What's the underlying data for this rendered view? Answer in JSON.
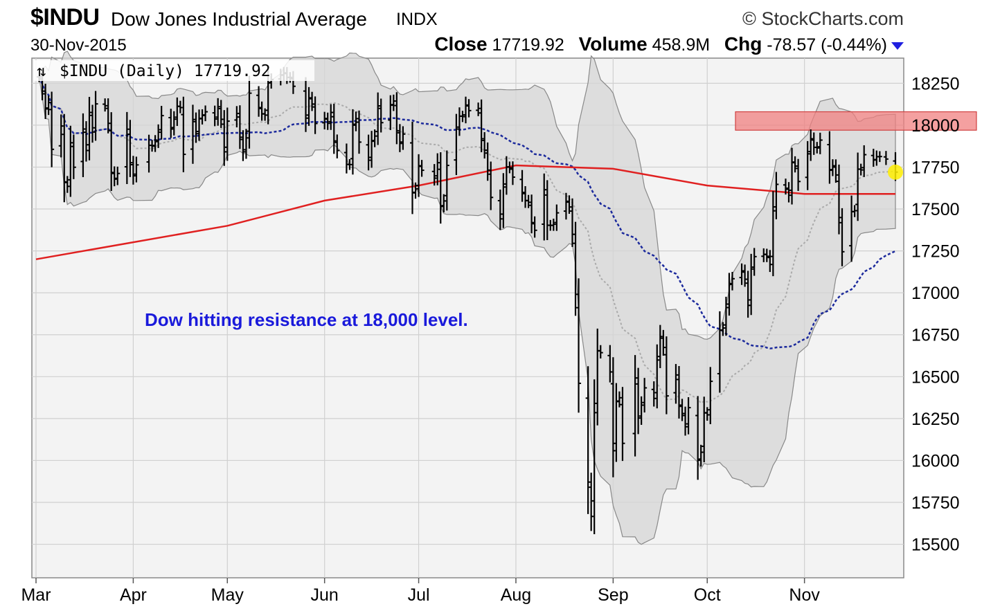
{
  "header": {
    "symbol": "$INDU",
    "name": "Dow Jones Industrial Average",
    "exchange": "INDX",
    "brand": "StockCharts.com",
    "date": "30-Nov-2015",
    "close_label": "Close",
    "close_value": "17719.92",
    "volume_label": "Volume",
    "volume_value": "458.9M",
    "chg_label": "Chg",
    "chg_value": "-78.57 (-0.44%)"
  },
  "legend_text": "$INDU (Daily) 17719.92",
  "annotation": "Dow hitting resistance at 18,000 level.",
  "colors": {
    "ma_long": "#e02020",
    "ma_mid": "#1c2a9c",
    "ma_short": "#aaaaaa",
    "band_fill": "#dcdcdc",
    "resistance": "#f08080",
    "annotation": "#1a1adb",
    "last_marker": "#ffee00"
  },
  "chart_data": {
    "type": "ohlc",
    "title": "$INDU (Daily) 17719.92",
    "x_range": [
      "2015-03-01",
      "2015-11-30"
    ],
    "ylim": [
      15300,
      18400
    ],
    "y_ticks": [
      15500,
      15750,
      16000,
      16250,
      16500,
      16750,
      17000,
      17250,
      17500,
      17750,
      18000,
      18250
    ],
    "y_tick_labels": [
      "15500",
      "15750",
      "16000",
      "16250",
      "16500",
      "16750",
      "17000",
      "17250",
      "17500",
      "17750",
      "18000",
      "18250"
    ],
    "x_ticks": [
      "2015-03-01",
      "2015-04-01",
      "2015-05-01",
      "2015-06-01",
      "2015-07-01",
      "2015-08-01",
      "2015-09-01",
      "2015-10-01",
      "2015-11-01"
    ],
    "x_tick_labels": [
      "Mar",
      "Apr",
      "May",
      "Jun",
      "Jul",
      "Aug",
      "Sep",
      "Oct",
      "Nov"
    ],
    "grid": true,
    "resistance_zone": [
      17970,
      18080
    ],
    "resistance_start": "2015-10-10",
    "close": [
      [
        "2015-03-02",
        18288
      ],
      [
        "2015-03-03",
        18203
      ],
      [
        "2015-03-04",
        18097
      ],
      [
        "2015-03-05",
        18135
      ],
      [
        "2015-03-06",
        17856
      ],
      [
        "2015-03-09",
        17995
      ],
      [
        "2015-03-10",
        17662
      ],
      [
        "2015-03-11",
        17635
      ],
      [
        "2015-03-12",
        17895
      ],
      [
        "2015-03-13",
        17749
      ],
      [
        "2015-03-16",
        17977
      ],
      [
        "2015-03-17",
        17849
      ],
      [
        "2015-03-18",
        18076
      ],
      [
        "2015-03-19",
        17959
      ],
      [
        "2015-03-20",
        18127
      ],
      [
        "2015-03-23",
        18116
      ],
      [
        "2015-03-24",
        18011
      ],
      [
        "2015-03-25",
        17718
      ],
      [
        "2015-03-26",
        17678
      ],
      [
        "2015-03-27",
        17712
      ],
      [
        "2015-03-30",
        17976
      ],
      [
        "2015-03-31",
        17776
      ],
      [
        "2015-04-01",
        17698
      ],
      [
        "2015-04-02",
        17763
      ],
      [
        "2015-04-06",
        17880
      ],
      [
        "2015-04-07",
        17875
      ],
      [
        "2015-04-08",
        17902
      ],
      [
        "2015-04-09",
        17958
      ],
      [
        "2015-04-10",
        18057
      ],
      [
        "2015-04-13",
        17977
      ],
      [
        "2015-04-14",
        18036
      ],
      [
        "2015-04-15",
        18113
      ],
      [
        "2015-04-16",
        18105
      ],
      [
        "2015-04-17",
        17826
      ],
      [
        "2015-04-20",
        18034
      ],
      [
        "2015-04-21",
        17949
      ],
      [
        "2015-04-22",
        18038
      ],
      [
        "2015-04-23",
        18058
      ],
      [
        "2015-04-24",
        18080
      ],
      [
        "2015-04-27",
        18037
      ],
      [
        "2015-04-28",
        18110
      ],
      [
        "2015-04-29",
        18035
      ],
      [
        "2015-04-30",
        17841
      ],
      [
        "2015-05-01",
        18024
      ],
      [
        "2015-05-04",
        18070
      ],
      [
        "2015-05-05",
        17928
      ],
      [
        "2015-05-06",
        17841
      ],
      [
        "2015-05-07",
        17924
      ],
      [
        "2015-05-08",
        18191
      ],
      [
        "2015-05-11",
        18105
      ],
      [
        "2015-05-12",
        18068
      ],
      [
        "2015-05-13",
        18060
      ],
      [
        "2015-05-14",
        18252
      ],
      [
        "2015-05-15",
        18272
      ],
      [
        "2015-05-18",
        18298
      ],
      [
        "2015-05-19",
        18312
      ],
      [
        "2015-05-20",
        18285
      ],
      [
        "2015-05-21",
        18285
      ],
      [
        "2015-05-22",
        18232
      ],
      [
        "2015-05-26",
        18042
      ],
      [
        "2015-05-27",
        18163
      ],
      [
        "2015-05-28",
        18126
      ],
      [
        "2015-05-29",
        18010
      ],
      [
        "2015-06-01",
        18040
      ],
      [
        "2015-06-02",
        18011
      ],
      [
        "2015-06-03",
        18076
      ],
      [
        "2015-06-04",
        17906
      ],
      [
        "2015-06-05",
        17849
      ],
      [
        "2015-06-08",
        17766
      ],
      [
        "2015-06-09",
        17765
      ],
      [
        "2015-06-10",
        18000
      ],
      [
        "2015-06-11",
        18039
      ],
      [
        "2015-06-12",
        17899
      ],
      [
        "2015-06-15",
        17791
      ],
      [
        "2015-06-16",
        17904
      ],
      [
        "2015-06-17",
        17935
      ],
      [
        "2015-06-18",
        18115
      ],
      [
        "2015-06-19",
        18015
      ],
      [
        "2015-06-22",
        18119
      ],
      [
        "2015-06-23",
        18144
      ],
      [
        "2015-06-24",
        17966
      ],
      [
        "2015-06-25",
        17891
      ],
      [
        "2015-06-26",
        17947
      ],
      [
        "2015-06-29",
        17596
      ],
      [
        "2015-06-30",
        17620
      ],
      [
        "2015-07-01",
        17758
      ],
      [
        "2015-07-02",
        17731
      ],
      [
        "2015-07-06",
        17684
      ],
      [
        "2015-07-07",
        17776
      ],
      [
        "2015-07-08",
        17515
      ],
      [
        "2015-07-09",
        17548
      ],
      [
        "2015-07-10",
        17760
      ],
      [
        "2015-07-13",
        17977
      ],
      [
        "2015-07-14",
        18054
      ],
      [
        "2015-07-15",
        18051
      ],
      [
        "2015-07-16",
        18120
      ],
      [
        "2015-07-17",
        18087
      ],
      [
        "2015-07-20",
        18100
      ],
      [
        "2015-07-21",
        17919
      ],
      [
        "2015-07-22",
        17851
      ],
      [
        "2015-07-23",
        17732
      ],
      [
        "2015-07-24",
        17569
      ],
      [
        "2015-07-27",
        17441
      ],
      [
        "2015-07-28",
        17631
      ],
      [
        "2015-07-29",
        17751
      ],
      [
        "2015-07-30",
        17746
      ],
      [
        "2015-07-31",
        17690
      ],
      [
        "2015-08-03",
        17599
      ],
      [
        "2015-08-04",
        17551
      ],
      [
        "2015-08-05",
        17540
      ],
      [
        "2015-08-06",
        17419
      ],
      [
        "2015-08-07",
        17373
      ],
      [
        "2015-08-10",
        17615
      ],
      [
        "2015-08-11",
        17403
      ],
      [
        "2015-08-12",
        17402
      ],
      [
        "2015-08-13",
        17409
      ],
      [
        "2015-08-14",
        17477
      ],
      [
        "2015-08-17",
        17546
      ],
      [
        "2015-08-18",
        17512
      ],
      [
        "2015-08-19",
        17349
      ],
      [
        "2015-08-20",
        16991
      ],
      [
        "2015-08-21",
        16460
      ],
      [
        "2015-08-24",
        15871
      ],
      [
        "2015-08-25",
        15666
      ],
      [
        "2015-08-26",
        16285
      ],
      [
        "2015-08-27",
        16655
      ],
      [
        "2015-08-28",
        16643
      ],
      [
        "2015-08-31",
        16528
      ],
      [
        "2015-09-01",
        16058
      ],
      [
        "2015-09-02",
        16351
      ],
      [
        "2015-09-03",
        16374
      ],
      [
        "2015-09-04",
        16102
      ],
      [
        "2015-09-08",
        16492
      ],
      [
        "2015-09-09",
        16253
      ],
      [
        "2015-09-10",
        16330
      ],
      [
        "2015-09-11",
        16433
      ],
      [
        "2015-09-14",
        16370
      ],
      [
        "2015-09-15",
        16599
      ],
      [
        "2015-09-16",
        16739
      ],
      [
        "2015-09-17",
        16674
      ],
      [
        "2015-09-18",
        16385
      ],
      [
        "2015-09-21",
        16510
      ],
      [
        "2015-09-22",
        16330
      ],
      [
        "2015-09-23",
        16280
      ],
      [
        "2015-09-24",
        16201
      ],
      [
        "2015-09-25",
        16315
      ],
      [
        "2015-09-28",
        16001
      ],
      [
        "2015-09-29",
        16049
      ],
      [
        "2015-09-30",
        16285
      ],
      [
        "2015-10-01",
        16272
      ],
      [
        "2015-10-02",
        16472
      ],
      [
        "2015-10-05",
        16776
      ],
      [
        "2015-10-06",
        16790
      ],
      [
        "2015-10-07",
        16912
      ],
      [
        "2015-10-08",
        17050
      ],
      [
        "2015-10-09",
        17084
      ],
      [
        "2015-10-12",
        17131
      ],
      [
        "2015-10-13",
        17081
      ],
      [
        "2015-10-14",
        16925
      ],
      [
        "2015-10-15",
        17142
      ],
      [
        "2015-10-16",
        17216
      ],
      [
        "2015-10-19",
        17230
      ],
      [
        "2015-10-20",
        17218
      ],
      [
        "2015-10-21",
        17169
      ],
      [
        "2015-10-22",
        17489
      ],
      [
        "2015-10-23",
        17647
      ],
      [
        "2015-10-26",
        17624
      ],
      [
        "2015-10-27",
        17582
      ],
      [
        "2015-10-28",
        17780
      ],
      [
        "2015-10-29",
        17756
      ],
      [
        "2015-10-30",
        17664
      ],
      [
        "2015-11-02",
        17829
      ],
      [
        "2015-11-03",
        17919
      ],
      [
        "2015-11-04",
        17868
      ],
      [
        "2015-11-05",
        17864
      ],
      [
        "2015-11-06",
        17911
      ],
      [
        "2015-11-09",
        17731
      ],
      [
        "2015-11-10",
        17758
      ],
      [
        "2015-11-11",
        17703
      ],
      [
        "2015-11-12",
        17449
      ],
      [
        "2015-11-13",
        17245
      ],
      [
        "2015-11-16",
        17484
      ],
      [
        "2015-11-17",
        17490
      ],
      [
        "2015-11-18",
        17738
      ],
      [
        "2015-11-19",
        17733
      ],
      [
        "2015-11-20",
        17824
      ],
      [
        "2015-11-23",
        17792
      ],
      [
        "2015-11-24",
        17812
      ],
      [
        "2015-11-25",
        17813
      ],
      [
        "2015-11-27",
        17798
      ],
      [
        "2015-11-30",
        17720
      ]
    ],
    "ma_long_endpoints": [
      [
        "2015-03-01",
        17200
      ],
      [
        "2015-05-01",
        17400
      ],
      [
        "2015-06-01",
        17550
      ],
      [
        "2015-07-01",
        17640
      ],
      [
        "2015-08-01",
        17760
      ],
      [
        "2015-09-01",
        17740
      ],
      [
        "2015-10-01",
        17640
      ],
      [
        "2015-11-01",
        17590
      ],
      [
        "2015-11-30",
        17590
      ]
    ]
  }
}
